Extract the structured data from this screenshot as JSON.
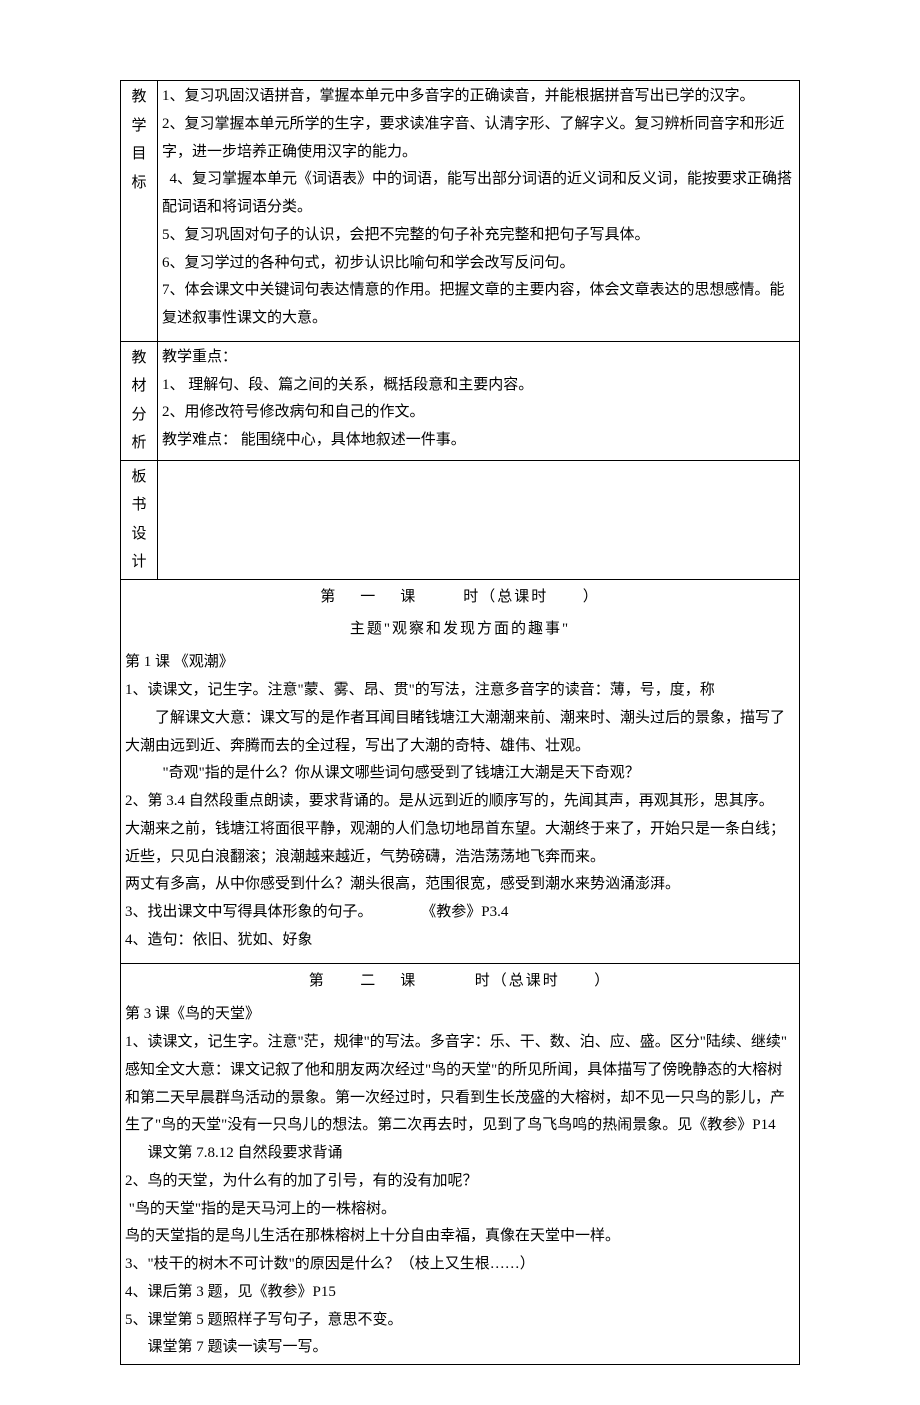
{
  "rows": {
    "objectives": {
      "label": [
        "教",
        "学",
        "目",
        "标"
      ],
      "items": [
        "1、复习巩固汉语拼音，掌握本单元中多音字的正确读音，并能根据拼音写出已学的汉字。",
        "2、复习掌握本单元所学的生字，要求读准字音、认清字形、了解字义。复习辨析同音字和形近字，进一步培养正确使用汉字的能力。",
        "  4、复习掌握本单元《词语表》中的词语，能写出部分词语的近义词和反义词，能按要求正确搭配词语和将词语分类。",
        "5、复习巩固对句子的认识，会把不完整的句子补充完整和把句子写具体。",
        "6、复习学过的各种句式，初步认识比喻句和学会改写反问句。",
        "7、体会课文中关键词句表达情意的作用。把握文章的主要内容，体会文章表达的思想感情。能复述叙事性课文的大意。"
      ]
    },
    "analysis": {
      "label": [
        "教",
        "材",
        "分",
        "析"
      ],
      "lines": [
        "教学重点：",
        "1、 理解句、段、篇之间的关系，概括段意和主要内容。",
        "2、用修改符号修改病句和自己的作文。",
        "教学难点： 能围绕中心，具体地叙述一件事。"
      ]
    },
    "board": {
      "label": [
        "板",
        "书",
        "设",
        "计"
      ]
    }
  },
  "session1": {
    "header": "第    一    课        时（总课时      ）",
    "subtitle": "主题\"观察和发现方面的趣事\"",
    "lesson_title": "第 1 课 《观潮》",
    "lines": [
      "1、读课文，记生字。注意\"蒙、雾、昂、贯\"的写法，注意多音字的读音：薄，号，度，称",
      "        了解课文大意：课文写的是作者耳闻目睹钱塘江大潮潮来前、潮来时、潮头过后的景象，描写了大潮由远到近、奔腾而去的全过程，写出了大潮的奇特、雄伟、壮观。",
      "          \"奇观\"指的是什么？你从课文哪些词句感受到了钱塘江大潮是天下奇观？",
      "2、第 3.4 自然段重点朗读，要求背诵的。是从远到近的顺序写的，先闻其声，再观其形，思其序。",
      "大潮来之前，钱塘江将面很平静，观潮的人们急切地昂首东望。大潮终于来了，开始只是一条白线；近些，只见白浪翻滚；浪潮越来越近，气势磅礴，浩浩荡荡地飞奔而来。",
      "两丈有多高，从中你感受到什么？潮头很高，范围很宽，感受到潮水来势汹涌澎湃。",
      "3、找出课文中写得具体形象的句子。             《教参》P3.4",
      "4、造句：依旧、犹如、好象"
    ]
  },
  "session2": {
    "header": "第      二    课          时（总课时      ）",
    "lesson_title": "第 3 课《鸟的天堂》",
    "lines": [
      "1、读课文，记生字。注意\"茫，规律\"的写法。多音字：乐、干、数、泊、应、盛。区分\"陆续、继续\"   感知全文大意：课文记叙了他和朋友两次经过\"鸟的天堂\"的所见所闻，具体描写了傍晚静态的大榕树和第二天早晨群鸟活动的景象。第一次经过时，只看到生长茂盛的大榕树，却不见一只鸟的影儿，产生了\"鸟的天堂\"没有一只鸟儿的想法。第二次再去时，见到了鸟飞鸟鸣的热闹景象。见《教参》P14",
      "      课文第 7.8.12 自然段要求背诵",
      "2、鸟的天堂，为什么有的加了引号，有的没有加呢？",
      " \"鸟的天堂\"指的是天马河上的一株榕树。",
      "鸟的天堂指的是鸟儿生活在那株榕树上十分自由幸福，真像在天堂中一样。",
      "3、\"枝干的树木不可计数\"的原因是什么？（枝上又生根……）",
      "4、课后第 3 题，见《教参》P15",
      "5、课堂第 5 题照样子写句子，意思不变。",
      "      课堂第 7 题读一读写一写。"
    ]
  }
}
